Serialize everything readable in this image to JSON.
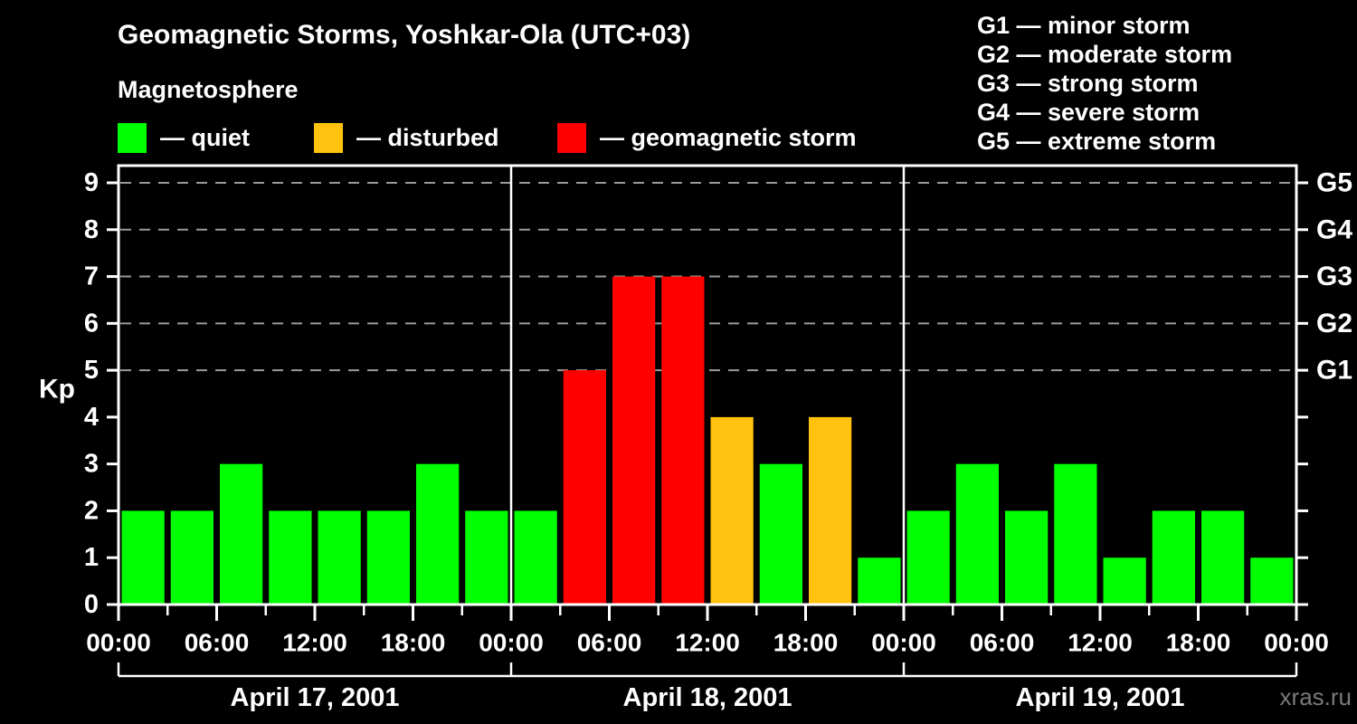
{
  "title": "Geomagnetic Storms, Yoshkar-Ola (UTC+03)",
  "subtitle": "Magnetosphere",
  "legend": {
    "items": [
      {
        "key": "quiet",
        "label": "— quiet",
        "color": "#00ff00"
      },
      {
        "key": "disturbed",
        "label": "— disturbed",
        "color": "#ffc20e"
      },
      {
        "key": "storm",
        "label": "— geomagnetic storm",
        "color": "#ff0000"
      }
    ]
  },
  "storm_scale_legend": {
    "items": [
      "G1 — minor storm",
      "G2 — moderate storm",
      "G3 — strong storm",
      "G4 — severe storm",
      "G5 — extreme storm"
    ]
  },
  "watermark": "xras.ru",
  "chart_data": {
    "type": "bar",
    "title": "Geomagnetic Storms, Yoshkar-Ola (UTC+03)",
    "ylabel": "Kp",
    "ylim": [
      0,
      9.4
    ],
    "y_ticks": [
      0,
      1,
      2,
      3,
      4,
      5,
      6,
      7,
      8,
      9
    ],
    "gridlines_at": [
      5,
      6,
      7,
      8,
      9
    ],
    "grid_style": "dashed",
    "legend_position": "top",
    "right_axis_labels": [
      {
        "value": 5,
        "label": "G1"
      },
      {
        "value": 6,
        "label": "G2"
      },
      {
        "value": 7,
        "label": "G3"
      },
      {
        "value": 8,
        "label": "G4"
      },
      {
        "value": 9,
        "label": "G5"
      }
    ],
    "x_hours_span": 72,
    "bar_slot_hours": 3,
    "x_tick_step_hours": 3,
    "x_label_step_hours": 6,
    "x_tick_labels": [
      "00:00",
      "06:00",
      "12:00",
      "18:00",
      "00:00",
      "06:00",
      "12:00",
      "18:00",
      "00:00",
      "06:00",
      "12:00",
      "18:00",
      "00:00"
    ],
    "days": [
      {
        "label": "April 17, 2001",
        "values": [
          2,
          2,
          3,
          2,
          2,
          2,
          3,
          2
        ]
      },
      {
        "label": "April 18, 2001",
        "values": [
          2,
          5,
          7,
          7,
          4,
          3,
          4,
          1
        ]
      },
      {
        "label": "April 19, 2001",
        "values": [
          2,
          3,
          2,
          3,
          1,
          2,
          2,
          1
        ]
      }
    ],
    "colors": {
      "quiet": "#00ff00",
      "disturbed": "#ffc20e",
      "storm": "#ff0000"
    },
    "color_rule": {
      "quiet_max_kp": 3,
      "disturbed_kp": 4,
      "storm_min_kp": 5
    },
    "axis_color": "#ffffff",
    "gridline_color": "#9a9a9a",
    "background_color": "#000000"
  }
}
